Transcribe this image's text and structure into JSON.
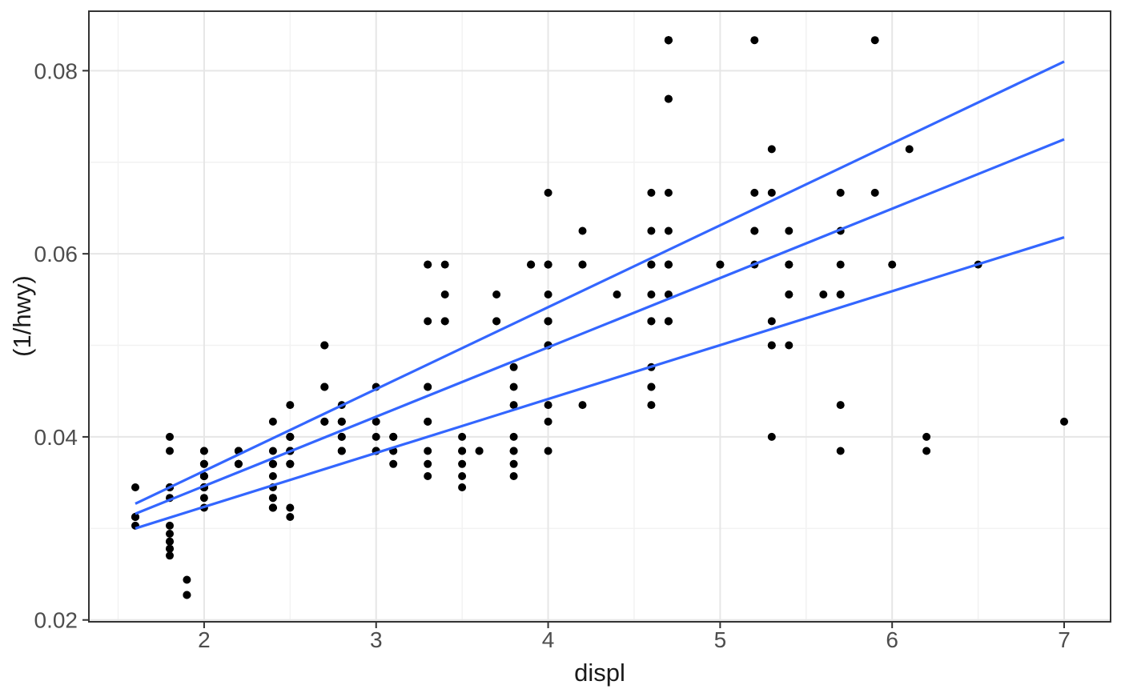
{
  "chart_data": {
    "type": "scatter",
    "title": "",
    "xlabel": "displ",
    "ylabel": "(1/hwy)",
    "x_ticks": [
      2,
      3,
      4,
      5,
      6,
      7
    ],
    "x_tick_labels": [
      "2",
      "3",
      "4",
      "5",
      "6",
      "7"
    ],
    "x_minor_ticks": [
      1.5,
      2.5,
      3.5,
      4.5,
      5.5,
      6.5
    ],
    "y_ticks": [
      0.02,
      0.04,
      0.06,
      0.08
    ],
    "y_tick_labels": [
      "0.02",
      "0.04",
      "0.06",
      "0.08"
    ],
    "y_minor_ticks": [
      0.03,
      0.05,
      0.07
    ],
    "x_range": [
      1.33,
      7.27
    ],
    "y_range": [
      0.0198,
      0.0865
    ],
    "grid": "major+minor",
    "legend": "none",
    "y_transform": "y = 1/hwy",
    "points_displ_hwy": [
      [
        1.8,
        29
      ],
      [
        1.8,
        29
      ],
      [
        2.0,
        31
      ],
      [
        2.0,
        30
      ],
      [
        2.8,
        26
      ],
      [
        2.8,
        26
      ],
      [
        3.1,
        27
      ],
      [
        1.8,
        26
      ],
      [
        1.8,
        25
      ],
      [
        2.0,
        28
      ],
      [
        2.0,
        27
      ],
      [
        2.8,
        25
      ],
      [
        2.8,
        25
      ],
      [
        3.1,
        25
      ],
      [
        3.1,
        25
      ],
      [
        2.8,
        24
      ],
      [
        3.1,
        25
      ],
      [
        4.2,
        23
      ],
      [
        5.3,
        20
      ],
      [
        5.3,
        15
      ],
      [
        5.3,
        20
      ],
      [
        5.7,
        17
      ],
      [
        6.0,
        17
      ],
      [
        5.7,
        26
      ],
      [
        5.7,
        23
      ],
      [
        6.2,
        26
      ],
      [
        6.2,
        25
      ],
      [
        7.0,
        24
      ],
      [
        5.3,
        19
      ],
      [
        5.3,
        14
      ],
      [
        5.7,
        15
      ],
      [
        6.5,
        17
      ],
      [
        2.4,
        27
      ],
      [
        2.4,
        30
      ],
      [
        3.1,
        26
      ],
      [
        3.5,
        29
      ],
      [
        3.6,
        26
      ],
      [
        2.4,
        24
      ],
      [
        3.0,
        24
      ],
      [
        3.3,
        22
      ],
      [
        3.3,
        22
      ],
      [
        3.3,
        24
      ],
      [
        3.3,
        24
      ],
      [
        3.3,
        17
      ],
      [
        3.8,
        22
      ],
      [
        3.8,
        21
      ],
      [
        3.8,
        23
      ],
      [
        4.0,
        23
      ],
      [
        3.7,
        19
      ],
      [
        3.7,
        18
      ],
      [
        3.9,
        17
      ],
      [
        3.9,
        17
      ],
      [
        4.7,
        19
      ],
      [
        4.7,
        19
      ],
      [
        4.7,
        12
      ],
      [
        5.2,
        17
      ],
      [
        5.2,
        15
      ],
      [
        3.9,
        17
      ],
      [
        4.7,
        16
      ],
      [
        4.7,
        18
      ],
      [
        4.7,
        17
      ],
      [
        4.7,
        12
      ],
      [
        5.2,
        16
      ],
      [
        5.9,
        15
      ],
      [
        4.7,
        17
      ],
      [
        4.7,
        15
      ],
      [
        4.7,
        13
      ],
      [
        4.7,
        13
      ],
      [
        4.7,
        12
      ],
      [
        4.7,
        12
      ],
      [
        5.2,
        16
      ],
      [
        5.2,
        12
      ],
      [
        5.7,
        16
      ],
      [
        5.9,
        12
      ],
      [
        4.6,
        17
      ],
      [
        5.4,
        17
      ],
      [
        5.4,
        18
      ],
      [
        4.0,
        17
      ],
      [
        4.0,
        17
      ],
      [
        4.0,
        19
      ],
      [
        4.0,
        19
      ],
      [
        4.6,
        19
      ],
      [
        5.0,
        17
      ],
      [
        4.2,
        17
      ],
      [
        4.2,
        16
      ],
      [
        4.6,
        18
      ],
      [
        4.6,
        15
      ],
      [
        4.6,
        17
      ],
      [
        4.6,
        17
      ],
      [
        5.4,
        17
      ],
      [
        3.8,
        26
      ],
      [
        3.8,
        25
      ],
      [
        4.0,
        26
      ],
      [
        4.0,
        24
      ],
      [
        4.6,
        21
      ],
      [
        4.6,
        22
      ],
      [
        4.6,
        23
      ],
      [
        4.6,
        22
      ],
      [
        5.4,
        20
      ],
      [
        1.6,
        33
      ],
      [
        1.6,
        32
      ],
      [
        1.6,
        32
      ],
      [
        1.6,
        29
      ],
      [
        1.6,
        32
      ],
      [
        1.8,
        34
      ],
      [
        1.8,
        36
      ],
      [
        1.8,
        36
      ],
      [
        2.0,
        29
      ],
      [
        2.4,
        26
      ],
      [
        2.4,
        27
      ],
      [
        2.4,
        30
      ],
      [
        2.4,
        31
      ],
      [
        2.5,
        26
      ],
      [
        2.5,
        26
      ],
      [
        3.3,
        28
      ],
      [
        2.0,
        26
      ],
      [
        2.0,
        29
      ],
      [
        2.0,
        28
      ],
      [
        2.0,
        27
      ],
      [
        2.7,
        24
      ],
      [
        2.7,
        24
      ],
      [
        2.7,
        24
      ],
      [
        3.0,
        22
      ],
      [
        3.7,
        19
      ],
      [
        4.0,
        20
      ],
      [
        4.7,
        17
      ],
      [
        4.7,
        12
      ],
      [
        4.7,
        19
      ],
      [
        5.7,
        18
      ],
      [
        6.1,
        14
      ],
      [
        4.0,
        15
      ],
      [
        4.2,
        17
      ],
      [
        4.4,
        18
      ],
      [
        4.6,
        16
      ],
      [
        5.4,
        17
      ],
      [
        5.4,
        16
      ],
      [
        5.4,
        18
      ],
      [
        4.0,
        17
      ],
      [
        4.0,
        19
      ],
      [
        4.6,
        19
      ],
      [
        5.0,
        17
      ],
      [
        2.4,
        29
      ],
      [
        2.4,
        27
      ],
      [
        2.5,
        31
      ],
      [
        2.5,
        32
      ],
      [
        3.5,
        27
      ],
      [
        3.5,
        26
      ],
      [
        3.0,
        26
      ],
      [
        3.0,
        25
      ],
      [
        3.5,
        26
      ],
      [
        3.5,
        25
      ],
      [
        3.3,
        19
      ],
      [
        3.3,
        17
      ],
      [
        4.0,
        20
      ],
      [
        4.0,
        18
      ],
      [
        5.6,
        18
      ],
      [
        3.1,
        26
      ],
      [
        3.8,
        26
      ],
      [
        3.8,
        27
      ],
      [
        3.8,
        28
      ],
      [
        5.3,
        25
      ],
      [
        2.5,
        26
      ],
      [
        2.5,
        27
      ],
      [
        2.5,
        25
      ],
      [
        2.5,
        27
      ],
      [
        2.5,
        25
      ],
      [
        2.5,
        26
      ],
      [
        2.2,
        26
      ],
      [
        2.2,
        27
      ],
      [
        2.5,
        26
      ],
      [
        2.5,
        25
      ],
      [
        2.5,
        27
      ],
      [
        2.5,
        23
      ],
      [
        2.5,
        26
      ],
      [
        2.5,
        25
      ],
      [
        2.7,
        20
      ],
      [
        2.7,
        20
      ],
      [
        2.7,
        22
      ],
      [
        3.4,
        19
      ],
      [
        3.4,
        17
      ],
      [
        4.0,
        19
      ],
      [
        2.2,
        26
      ],
      [
        2.2,
        27
      ],
      [
        2.4,
        28
      ],
      [
        2.4,
        31
      ],
      [
        3.0,
        26
      ],
      [
        3.0,
        26
      ],
      [
        3.5,
        28
      ],
      [
        2.2,
        26
      ],
      [
        2.2,
        27
      ],
      [
        2.4,
        31
      ],
      [
        2.4,
        31
      ],
      [
        3.0,
        26
      ],
      [
        3.3,
        27
      ],
      [
        3.3,
        26
      ],
      [
        1.8,
        30
      ],
      [
        1.8,
        33
      ],
      [
        1.8,
        35
      ],
      [
        1.8,
        37
      ],
      [
        1.8,
        35
      ],
      [
        4.7,
        17
      ],
      [
        5.7,
        18
      ],
      [
        2.7,
        20
      ],
      [
        2.7,
        22
      ],
      [
        2.7,
        22
      ],
      [
        3.4,
        19
      ],
      [
        3.4,
        18
      ],
      [
        4.0,
        20
      ],
      [
        4.0,
        20
      ],
      [
        2.0,
        29
      ],
      [
        2.0,
        29
      ],
      [
        2.0,
        28
      ],
      [
        2.0,
        29
      ],
      [
        2.8,
        24
      ],
      [
        1.9,
        44
      ],
      [
        2.0,
        29
      ],
      [
        2.0,
        29
      ],
      [
        2.0,
        28
      ],
      [
        2.0,
        29
      ],
      [
        2.5,
        26
      ],
      [
        2.5,
        26
      ],
      [
        2.8,
        24
      ],
      [
        2.8,
        23
      ],
      [
        1.9,
        44
      ],
      [
        1.9,
        41
      ],
      [
        2.0,
        29
      ],
      [
        2.0,
        26
      ],
      [
        2.0,
        28
      ],
      [
        2.0,
        29
      ],
      [
        1.8,
        29
      ],
      [
        1.8,
        29
      ],
      [
        2.0,
        28
      ],
      [
        2.0,
        29
      ],
      [
        2.8,
        26
      ],
      [
        2.8,
        26
      ],
      [
        3.6,
        26
      ]
    ],
    "quantile_lines": [
      {
        "quantile": 0.25,
        "x": [
          1.6,
          7.0
        ],
        "y": [
          0.03,
          0.0618
        ]
      },
      {
        "quantile": 0.5,
        "x": [
          1.6,
          7.0
        ],
        "y": [
          0.0316,
          0.0725
        ]
      },
      {
        "quantile": 0.75,
        "x": [
          1.6,
          7.0
        ],
        "y": [
          0.0327,
          0.081
        ]
      }
    ]
  },
  "style": {
    "point_color": "#000000",
    "quantile_line_color": "#3366FF",
    "grid_major_color": "#E6E6E6",
    "grid_minor_color": "#F2F2F2",
    "panel_border_color": "#333333",
    "tick_mark_color": "#333333",
    "tick_label_color": "#4D4D4D",
    "axis_title_color": "#1A1A1A",
    "panel_background": "#FFFFFF"
  }
}
